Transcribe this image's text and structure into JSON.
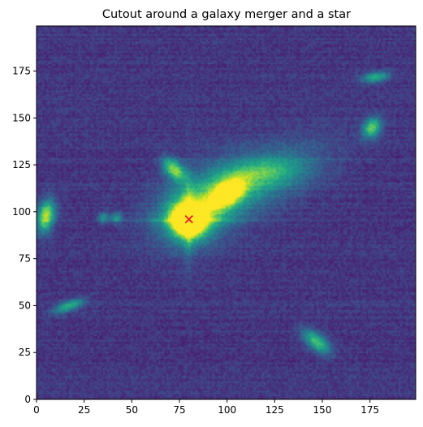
{
  "chart_data": {
    "type": "heatmap",
    "title": "Cutout around a galaxy merger and a star",
    "xlabel": "",
    "ylabel": "",
    "xlim": [
      0,
      199
    ],
    "ylim": [
      0,
      199
    ],
    "x_ticks": [
      0,
      25,
      50,
      75,
      100,
      125,
      150,
      175
    ],
    "y_ticks": [
      0,
      25,
      50,
      75,
      100,
      125,
      150,
      175
    ],
    "colormap": "viridis",
    "grid": false,
    "marker": {
      "shape": "x",
      "color": "#e8192c",
      "x": 80,
      "y": 96
    },
    "sources": [
      {
        "x": 80,
        "y": 96,
        "kind": "saturated-star",
        "rx": 8,
        "ry": 8,
        "angle": 0,
        "peak": 1.0
      },
      {
        "x": 100,
        "y": 110,
        "kind": "galaxy",
        "rx": 7,
        "ry": 4,
        "angle": 35,
        "peak": 0.85
      },
      {
        "x": 72,
        "y": 123,
        "kind": "galaxy",
        "rx": 5,
        "ry": 3,
        "angle": -45,
        "peak": 0.65
      },
      {
        "x": 5,
        "y": 98,
        "kind": "galaxy",
        "rx": 6,
        "ry": 3,
        "angle": 80,
        "peak": 0.75
      },
      {
        "x": 176,
        "y": 145,
        "kind": "galaxy",
        "rx": 4,
        "ry": 3,
        "angle": 60,
        "peak": 0.6
      },
      {
        "x": 178,
        "y": 172,
        "kind": "galaxy",
        "rx": 5,
        "ry": 2,
        "angle": 10,
        "peak": 0.45
      },
      {
        "x": 147,
        "y": 31,
        "kind": "galaxy",
        "rx": 6,
        "ry": 3,
        "angle": -40,
        "peak": 0.55
      },
      {
        "x": 17,
        "y": 50,
        "kind": "galaxy",
        "rx": 6,
        "ry": 2,
        "angle": 20,
        "peak": 0.45
      },
      {
        "x": 35,
        "y": 97,
        "kind": "galaxy",
        "rx": 2,
        "ry": 2,
        "angle": 0,
        "peak": 0.35
      },
      {
        "x": 42,
        "y": 97,
        "kind": "galaxy",
        "rx": 2,
        "ry": 2,
        "angle": 0,
        "peak": 0.35
      }
    ],
    "tidal_features": [
      {
        "x": 112,
        "y": 116,
        "rx": 26,
        "ry": 10,
        "angle": 20,
        "peak": 0.35
      },
      {
        "x": 88,
        "y": 104,
        "rx": 18,
        "ry": 12,
        "angle": 30,
        "peak": 0.3
      },
      {
        "x": 120,
        "y": 122,
        "rx": 14,
        "ry": 5,
        "angle": 5,
        "peak": 0.25
      }
    ]
  },
  "colors": {
    "background_low": "#440154",
    "star_core": "#fde725",
    "frame": "#000000"
  }
}
